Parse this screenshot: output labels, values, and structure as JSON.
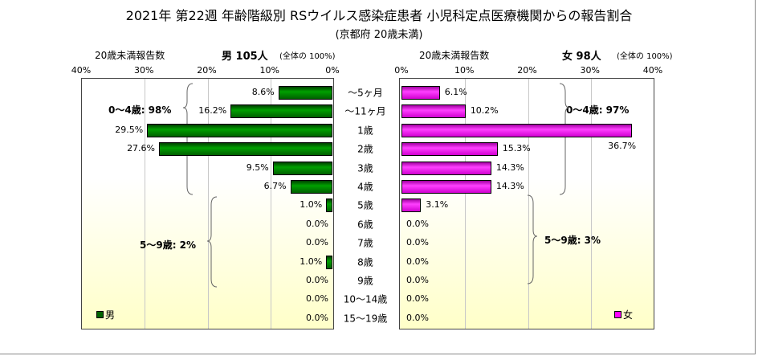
{
  "chart_data": {
    "type": "bar",
    "title": "2021年 第22週 年齢階級別 RSウイルス感染症患者 小児科定点医療機関からの報告割合",
    "subtitle": "(京都府 20歳未満)",
    "categories": [
      "～5ヶ月",
      "～11ヶ月",
      "1歳",
      "2歳",
      "3歳",
      "4歳",
      "5歳",
      "6歳",
      "7歳",
      "8歳",
      "9歳",
      "10～14歳",
      "15～19歳"
    ],
    "xlim": [
      0,
      40
    ],
    "ticks": [
      "0%",
      "10%",
      "20%",
      "30%",
      "40%"
    ],
    "series": [
      {
        "name": "男",
        "header_label": "20歳未満報告数",
        "header_count": "男 105人",
        "header_share": "(全体の 100%)",
        "color": "#006400",
        "values": [
          8.6,
          16.2,
          29.5,
          27.6,
          9.5,
          6.7,
          1.0,
          0.0,
          0.0,
          1.0,
          0.0,
          0.0,
          0.0
        ],
        "labels": [
          "8.6%",
          "16.2%",
          "29.5%",
          "27.6%",
          "9.5%",
          "6.7%",
          "1.0%",
          "0.0%",
          "0.0%",
          "1.0%",
          "0.0%",
          "0.0%",
          "0.0%"
        ],
        "annotations": [
          "0～4歳: 98%",
          "5～9歳: 2%"
        ]
      },
      {
        "name": "女",
        "header_label": "20歳未満報告数",
        "header_count": "女 98人",
        "header_share": "(全体の 100%)",
        "color": "#ff00ff",
        "values": [
          6.1,
          10.2,
          36.7,
          15.3,
          14.3,
          14.3,
          3.1,
          0.0,
          0.0,
          0.0,
          0.0,
          0.0,
          0.0
        ],
        "labels": [
          "6.1%",
          "10.2%",
          "36.7%",
          "15.3%",
          "14.3%",
          "14.3%",
          "3.1%",
          "0.0%",
          "0.0%",
          "0.0%",
          "0.0%",
          "0.0%",
          "0.0%"
        ],
        "annotations": [
          "0～4歳: 97%",
          "5～9歳: 3%"
        ]
      }
    ]
  }
}
